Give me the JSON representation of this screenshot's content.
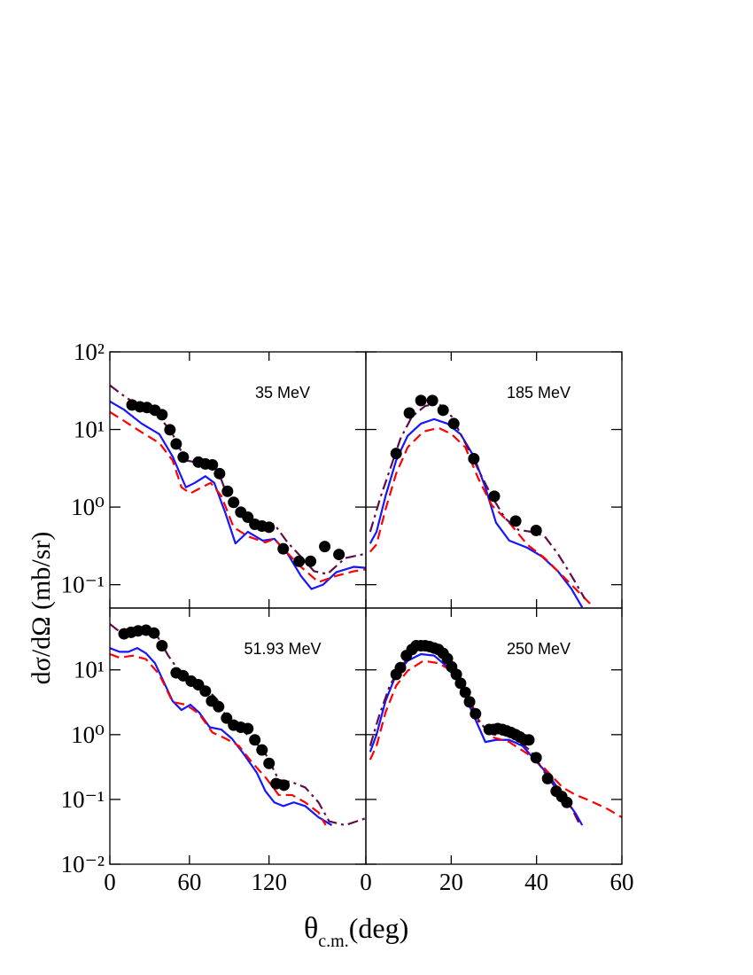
{
  "ylabel": "dσ/dΩ (mb/sr)",
  "xlabel": [
    "θ",
    "c.m.",
    "(deg)"
  ],
  "chart_data": [
    {
      "type": "line",
      "annotation": "35 MeV",
      "log_y": true,
      "xlim": [
        0,
        193
      ],
      "xticks": [
        0,
        60,
        120
      ],
      "ylim": [
        0.05,
        100
      ],
      "yticks": [
        {
          "value": 0.1,
          "label": "10⁻¹"
        },
        {
          "value": 1,
          "label": "10⁰"
        },
        {
          "value": 10,
          "label": "10¹"
        },
        {
          "value": 100,
          "label": "10²"
        }
      ],
      "series": [
        {
          "style": "solid",
          "color": "#1515ff",
          "x": [
            0,
            10.7,
            24,
            37.3,
            47.3,
            57.3,
            64,
            72,
            78.7,
            87.3,
            94.7,
            104,
            115.3,
            124,
            134,
            144,
            152,
            160.7,
            170.7,
            184,
            192.7
          ],
          "values": [
            23,
            18,
            11.9,
            8.7,
            4.5,
            1.8,
            2.05,
            2.5,
            2.05,
            0.82,
            0.34,
            0.48,
            0.37,
            0.39,
            0.25,
            0.13,
            0.088,
            0.1,
            0.145,
            0.17,
            0.165
          ]
        },
        {
          "style": "dashed",
          "color": "#ff0000",
          "x": [
            0,
            10.7,
            24,
            37.3,
            47.3,
            54,
            60.7,
            69.3,
            76,
            84,
            93.3,
            104,
            117.3,
            124,
            130.7,
            144,
            157.3,
            170.7,
            184,
            192.7
          ],
          "values": [
            16.8,
            12.9,
            9.2,
            6.7,
            4,
            1.8,
            1.5,
            1.8,
            2.05,
            1.4,
            0.55,
            0.42,
            0.35,
            0.39,
            0.29,
            0.17,
            0.108,
            0.13,
            0.149,
            0.157
          ]
        },
        {
          "style": "dashdot",
          "color": "#5e0c4c",
          "x": [
            0,
            10.7,
            24,
            37.3,
            47.3,
            57.3,
            64,
            74,
            80.7,
            87.3,
            97.3,
            110.7,
            124,
            134,
            144,
            154,
            164,
            177.3,
            192.7
          ],
          "values": [
            37,
            27,
            19,
            14.7,
            8.7,
            4,
            3.8,
            4,
            3.2,
            1.6,
            0.82,
            0.63,
            0.6,
            0.35,
            0.23,
            0.149,
            0.137,
            0.22,
            0.25
          ]
        },
        {
          "style": "points",
          "color": "#000000",
          "x": [
            16.7,
            22.7,
            28,
            34,
            39.3,
            45.3,
            50,
            55.3,
            66.7,
            72,
            77.3,
            82.7,
            88.7,
            93.3,
            98.7,
            104,
            109.3,
            114.7,
            120,
            130.7,
            142.7,
            151.3,
            162,
            172.7
          ],
          "values": [
            20.7,
            19.6,
            19.2,
            17.7,
            15.5,
            9.9,
            6.5,
            4.4,
            3.8,
            3.6,
            3.5,
            2.7,
            1.6,
            1.15,
            0.86,
            0.74,
            0.6,
            0.57,
            0.55,
            0.29,
            0.2,
            0.2,
            0.31,
            0.245
          ]
        }
      ]
    },
    {
      "type": "line",
      "annotation": "185 MeV",
      "log_y": true,
      "xlim": [
        0,
        60
      ],
      "xticks": [
        0,
        20,
        40,
        60
      ],
      "ylim": [
        0.05,
        100
      ],
      "yticks": [
        0.1,
        1,
        10,
        100
      ],
      "series": [
        {
          "style": "solid",
          "color": "#1515ff",
          "x": [
            1,
            2.5,
            4.6,
            7.1,
            9.8,
            12.9,
            16,
            19.1,
            22.2,
            25.3,
            28,
            30.5,
            33.6,
            37.8,
            41.3,
            45,
            48.2,
            50.7
          ],
          "values": [
            0.34,
            0.48,
            1.38,
            4,
            8.3,
            11.9,
            13.6,
            11.9,
            8.7,
            4.5,
            1.8,
            0.63,
            0.37,
            0.3,
            0.23,
            0.149,
            0.088,
            0.051
          ]
        },
        {
          "style": "dashed",
          "color": "#ff0000",
          "x": [
            1,
            2.5,
            4.6,
            7.1,
            9.8,
            13.5,
            17,
            20.1,
            23.3,
            26.4,
            29.5,
            33.6,
            37.8,
            41.9,
            46.1,
            50.2,
            53.4
          ],
          "values": [
            0.265,
            0.33,
            0.93,
            2.7,
            5.9,
            9.4,
            10.5,
            8.7,
            5.9,
            2.3,
            1.06,
            0.63,
            0.33,
            0.22,
            0.13,
            0.077,
            0.051
          ]
        },
        {
          "style": "dashdot",
          "color": "#5e0c4c",
          "x": [
            1,
            3.5,
            5.6,
            8.1,
            10.8,
            13.9,
            17,
            20.1,
            23.3,
            26.4,
            29.5,
            32.6,
            35.7,
            38.8,
            41.9,
            45,
            48.2,
            51.3
          ],
          "values": [
            0.48,
            1.38,
            3,
            7.6,
            14.7,
            20.1,
            21.8,
            14.7,
            6.7,
            3,
            1.38,
            0.72,
            0.51,
            0.48,
            0.42,
            0.25,
            0.13,
            0.066
          ]
        },
        {
          "style": "points",
          "color": "#000000",
          "x": [
            7.1,
            10.2,
            12.9,
            15.6,
            18.1,
            20.6,
            25.3,
            30.1,
            35.1,
            39.9
          ],
          "values": [
            4.9,
            16.3,
            23.6,
            23.6,
            17.7,
            11.9,
            4.2,
            1.38,
            0.66,
            0.5
          ]
        }
      ]
    },
    {
      "type": "line",
      "annotation": "51.93 MeV",
      "log_y": true,
      "xlim": [
        0,
        193
      ],
      "xticks": [
        0,
        60,
        120
      ],
      "ylim": [
        0.01,
        90
      ],
      "yticks": [
        {
          "value": 0.01,
          "label": "10⁻²"
        },
        {
          "value": 0.1,
          "label": "10⁻¹"
        },
        {
          "value": 1,
          "label": "10⁰"
        },
        {
          "value": 10,
          "label": "10¹"
        }
      ],
      "series": [
        {
          "style": "solid",
          "color": "#1515ff",
          "x": [
            0,
            7.3,
            14,
            20.7,
            27.3,
            34,
            40.7,
            47.3,
            54,
            60.7,
            67.3,
            75.3,
            84,
            92,
            100.7,
            110.7,
            117.3,
            124,
            130.7,
            138.7,
            147.3,
            157.3,
            167.3
          ],
          "values": [
            21.7,
            19,
            19,
            21.7,
            18,
            12.7,
            6.5,
            3.3,
            2.4,
            2.9,
            2.2,
            1.3,
            1.2,
            0.87,
            0.51,
            0.26,
            0.134,
            0.09,
            0.079,
            0.09,
            0.079,
            0.053,
            0.04
          ]
        },
        {
          "style": "dashed",
          "color": "#ff0000",
          "x": [
            0,
            7.3,
            17.3,
            27.3,
            37.3,
            47.3,
            57.3,
            67.3,
            77.3,
            87.3,
            97.3,
            107.3,
            117.3,
            127.3,
            137.3,
            147.3,
            157.3,
            162.7
          ],
          "values": [
            17.5,
            15.4,
            16.6,
            14.6,
            8.5,
            3.2,
            2.9,
            2.1,
            1.08,
            0.87,
            0.67,
            0.37,
            0.22,
            0.117,
            0.117,
            0.09,
            0.063,
            0.04
          ]
        },
        {
          "style": "dashdot",
          "color": "#5e0c4c",
          "x": [
            0,
            7.3,
            17.3,
            27.3,
            36,
            44,
            54,
            62.7,
            70.7,
            80.7,
            87.3,
            97.3,
            107.3,
            117.3,
            127.3,
            137.3,
            147.3,
            157.3,
            165.3,
            177.3,
            192.7
          ],
          "values": [
            51,
            39,
            37,
            39,
            32.5,
            16.6,
            8.5,
            6.5,
            5.7,
            3.5,
            1.95,
            1.3,
            0.87,
            0.51,
            0.2,
            0.185,
            0.153,
            0.09,
            0.046,
            0.04,
            0.051
          ]
        },
        {
          "style": "points",
          "color": "#000000",
          "x": [
            10.7,
            16,
            21.3,
            27.3,
            33.3,
            39.3,
            50,
            55.3,
            61.3,
            66.7,
            72,
            76.7,
            82,
            88,
            93.3,
            98.7,
            104,
            109.3,
            114.7,
            120,
            125.3,
            131.3
          ],
          "values": [
            36,
            38,
            40,
            41,
            37,
            23.6,
            9,
            8.1,
            6.7,
            5.9,
            4.7,
            3.3,
            2.7,
            1.8,
            1.4,
            1.3,
            1.24,
            0.83,
            0.58,
            0.36,
            0.175,
            0.166
          ]
        }
      ]
    },
    {
      "type": "line",
      "annotation": "250 MeV",
      "log_y": true,
      "xlim": [
        0,
        60
      ],
      "xticks": [
        0,
        20,
        40,
        60
      ],
      "ylim": [
        0.01,
        90
      ],
      "yticks": [
        0.01,
        0.1,
        1,
        10
      ],
      "series": [
        {
          "style": "solid",
          "color": "#1515ff",
          "x": [
            1,
            2.5,
            4.6,
            7.1,
            9.8,
            12.9,
            16,
            19.1,
            22.2,
            25.3,
            28,
            30.5,
            33.6,
            36.7,
            39.9,
            43,
            46.1,
            49.2,
            50.7
          ],
          "values": [
            0.54,
            1,
            3.3,
            8.5,
            13.8,
            17.5,
            16.6,
            11.1,
            5.7,
            1.95,
            0.77,
            0.83,
            0.83,
            0.67,
            0.39,
            0.23,
            0.117,
            0.06,
            0.04
          ]
        },
        {
          "style": "dashed",
          "color": "#ff0000",
          "x": [
            1,
            2.5,
            4.6,
            7.1,
            9.8,
            13.5,
            17,
            20.1,
            23.3,
            26.4,
            29.5,
            33.6,
            37.8,
            41.9,
            46.1,
            49.2,
            52.3,
            56.5,
            60
          ],
          "values": [
            0.41,
            0.67,
            2.2,
            5.7,
            9.7,
            13.8,
            12.7,
            9.7,
            5,
            1.7,
            0.92,
            0.77,
            0.51,
            0.3,
            0.153,
            0.117,
            0.097,
            0.072,
            0.053
          ]
        },
        {
          "style": "dashdot",
          "color": "#5e0c4c",
          "x": [
            1,
            3.1,
            5.6,
            8.1,
            10.8,
            13.9,
            17,
            20.1,
            23.3,
            26.4,
            29.5,
            32.6,
            35.7,
            38.8,
            41.9,
            45,
            48.2,
            50.2
          ],
          "values": [
            0.67,
            1.95,
            5.7,
            11.1,
            17.5,
            22.9,
            22.9,
            12.7,
            4.4,
            1.6,
            1,
            1,
            0.83,
            0.54,
            0.26,
            0.134,
            0.074,
            0.04
          ]
        },
        {
          "style": "points",
          "color": "#000000",
          "x": [
            7.1,
            8.1,
            9.5,
            10.8,
            11.8,
            12.9,
            13.9,
            14.9,
            16,
            17,
            18.1,
            19.1,
            20.1,
            21.2,
            22.2,
            23.3,
            24.3,
            25.7,
            28.9,
            29.9,
            30.9,
            32,
            33,
            34,
            35.1,
            36.1,
            37.2,
            38.2,
            39.9,
            42.6,
            44.6,
            45.9,
            47.1
          ],
          "values": [
            8.5,
            10.8,
            16.6,
            20.6,
            23.6,
            23.6,
            23.6,
            22.9,
            21.7,
            20.6,
            18,
            14.9,
            11.1,
            8.5,
            6.2,
            4.5,
            3.2,
            2.1,
            1.2,
            1.2,
            1.24,
            1.2,
            1.14,
            1.08,
            1,
            0.92,
            0.83,
            0.83,
            0.44,
            0.21,
            0.134,
            0.111,
            0.09
          ]
        }
      ]
    }
  ]
}
